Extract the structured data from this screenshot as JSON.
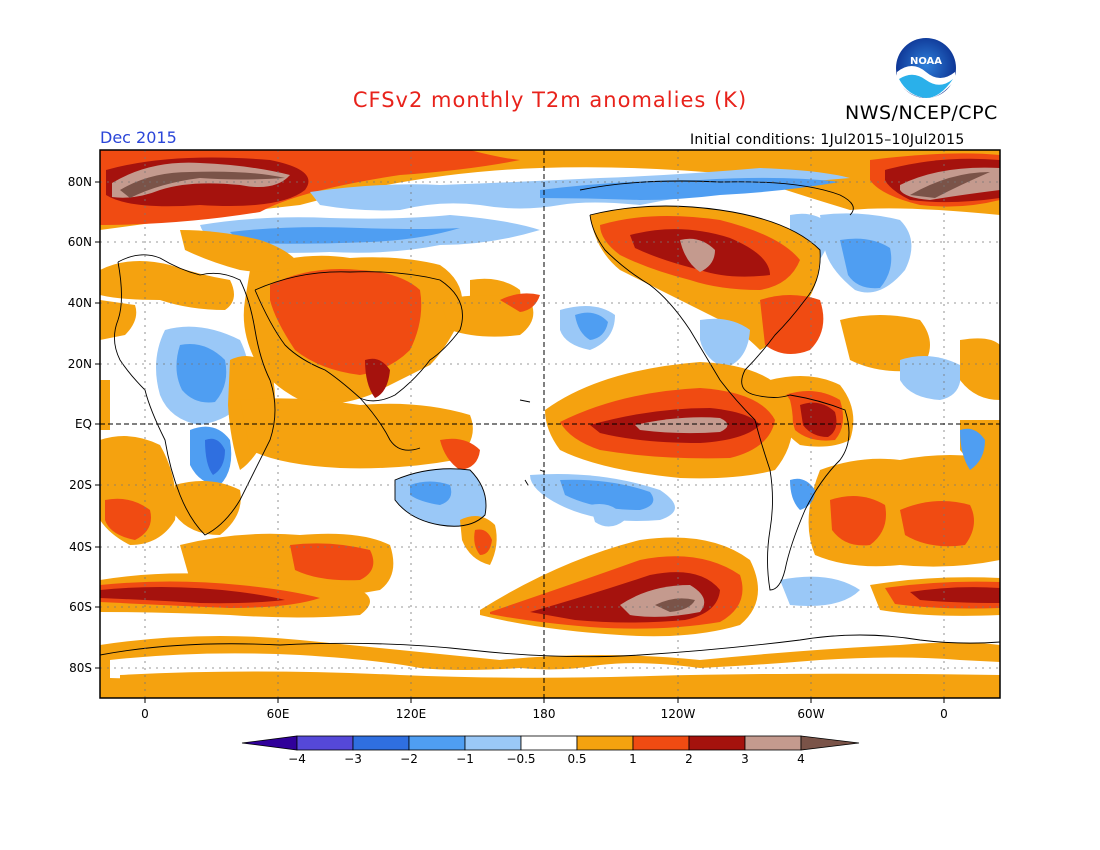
{
  "title": "CFSv2 monthly T2m anomalies (K)",
  "organization": "NWS/NCEP/CPC",
  "logo_text": "NOAA",
  "valid_month": "Dec 2015",
  "initial_conditions": "Initial conditions: 1Jul2015–10Jul2015",
  "lat_labels": [
    "80N",
    "60N",
    "40N",
    "20N",
    "EQ",
    "20S",
    "40S",
    "60S",
    "80S"
  ],
  "lon_labels": [
    "0",
    "60E",
    "120E",
    "180",
    "120W",
    "60W",
    "0"
  ],
  "colorbar": {
    "labels": [
      "−4",
      "−3",
      "−2",
      "−1",
      "−0.5",
      "0.5",
      "1",
      "2",
      "3",
      "4"
    ],
    "colors": [
      "#30009a",
      "#5548d8",
      "#2f6fe0",
      "#4f9ef2",
      "#9ac8f7",
      "#ffffff",
      "#f5a20f",
      "#f04b12",
      "#a5120d",
      "#c49a8e",
      "#7a5348"
    ]
  },
  "colors": {
    "title": "#e8221b",
    "month": "#2a45d8",
    "warm1": "#f5a20f",
    "warm2": "#f04b12",
    "warm3": "#a5120d",
    "warm4": "#c49a8e",
    "warm5": "#7a5348",
    "cool1": "#9ac8f7",
    "cool2": "#4f9ef2",
    "cool3": "#2f6fe0"
  }
}
